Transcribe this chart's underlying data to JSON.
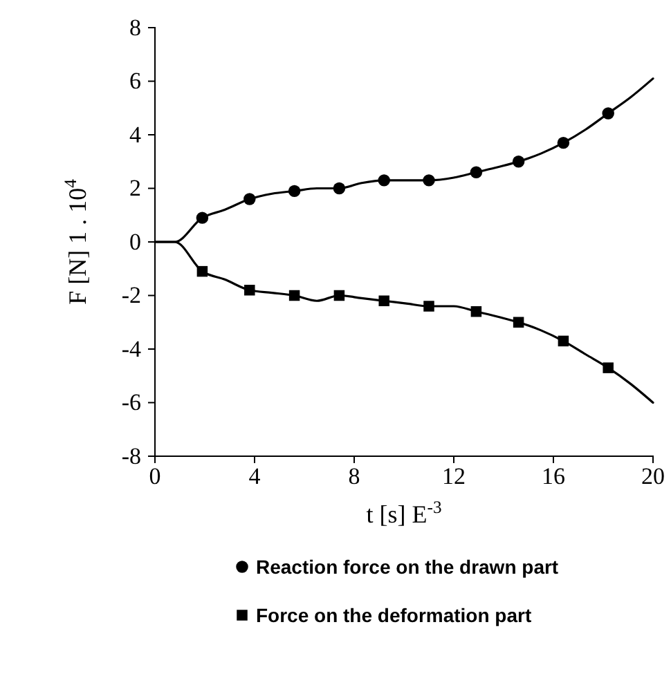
{
  "chart_data": {
    "type": "line",
    "xlabel": "t [s] E$^{-3}$",
    "ylabel": "F [N] 1 . 10$^{4}$",
    "xlim": [
      0,
      20
    ],
    "xticks": [
      0,
      4,
      8,
      12,
      16,
      20
    ],
    "ylim": [
      -8,
      8
    ],
    "yticks": [
      -8,
      -6,
      -4,
      -2,
      0,
      2,
      4,
      6,
      8
    ],
    "grid": false,
    "legend": "bottom",
    "line_style": "solid",
    "series": [
      {
        "type": "line",
        "color": "#000000",
        "marker": "none",
        "x": [
          0,
          0.8,
          1.9,
          2.8,
          3.8,
          4.7,
          5.6,
          6.5,
          7.4,
          8.3,
          9.2,
          10.1,
          11,
          12,
          12.9,
          13.8,
          14.6,
          15.5,
          16.4,
          17.3,
          18.2,
          19.1,
          20
        ],
        "values": [
          0,
          0,
          0.9,
          1.2,
          1.6,
          1.8,
          1.9,
          2.0,
          2.0,
          2.2,
          2.3,
          2.3,
          2.3,
          2.4,
          2.6,
          2.8,
          3.0,
          3.3,
          3.7,
          4.2,
          4.8,
          5.4,
          6.1
        ]
      },
      {
        "type": "scatter",
        "name": "Reaction force on the drawn part",
        "color": "#000000",
        "marker": "circle",
        "x": [
          1.9,
          3.8,
          5.6,
          7.4,
          9.2,
          11,
          12.9,
          14.6,
          16.4,
          18.2
        ],
        "values": [
          0.9,
          1.6,
          1.9,
          2.0,
          2.3,
          2.3,
          2.6,
          3.0,
          3.7,
          4.8
        ]
      },
      {
        "type": "line",
        "color": "#000000",
        "marker": "none",
        "x": [
          0,
          0.8,
          1.9,
          2.8,
          3.8,
          4.7,
          5.6,
          6.5,
          7.4,
          8.3,
          9.2,
          10.1,
          11,
          12,
          12.9,
          13.8,
          14.6,
          15.5,
          16.4,
          17.3,
          18.2,
          19.1,
          20
        ],
        "values": [
          0,
          0,
          -1.1,
          -1.4,
          -1.8,
          -1.9,
          -2.0,
          -2.2,
          -2.0,
          -2.1,
          -2.2,
          -2.3,
          -2.4,
          -2.4,
          -2.6,
          -2.8,
          -3.0,
          -3.3,
          -3.7,
          -4.2,
          -4.7,
          -5.3,
          -6.0
        ]
      },
      {
        "type": "scatter",
        "name": "Force on the deformation part",
        "color": "#000000",
        "marker": "square",
        "x": [
          1.9,
          3.8,
          5.6,
          7.4,
          9.2,
          11,
          12.9,
          14.6,
          16.4,
          18.2
        ],
        "values": [
          -1.1,
          -1.8,
          -2.0,
          -2.0,
          -2.2,
          -2.4,
          -2.6,
          -3.0,
          -3.7,
          -4.7
        ]
      }
    ]
  }
}
